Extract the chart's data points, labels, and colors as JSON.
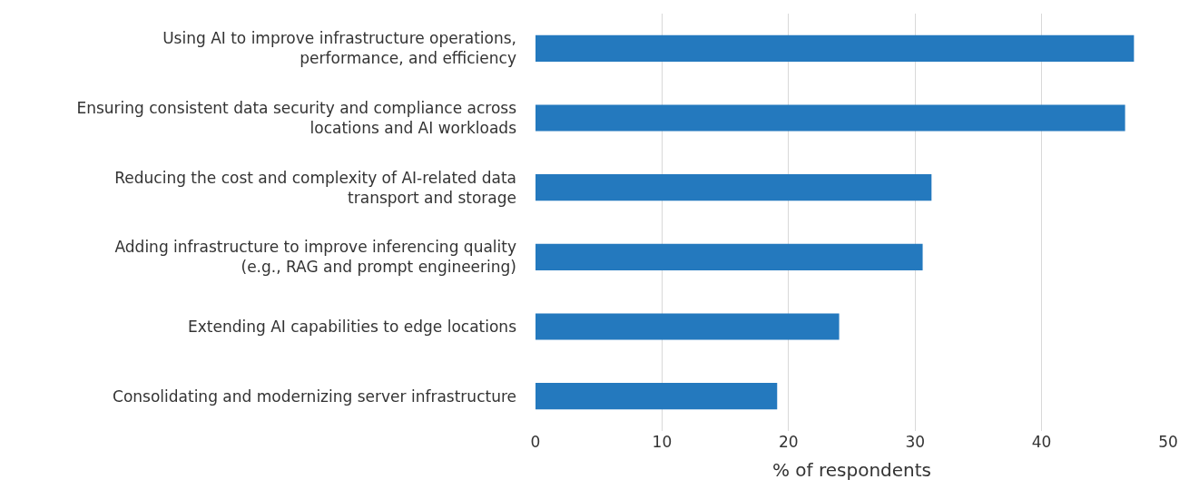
{
  "chart_data": {
    "type": "bar",
    "orientation": "horizontal",
    "categories": [
      "Using AI to improve infrastructure operations, performance, and efficiency",
      "Ensuring consistent data security and compliance across locations and AI workloads",
      "Reducing the cost and complexity of AI-related data transport and storage",
      "Adding infrastructure to improve inferencing quality (e.g., RAG and prompt engineering)",
      "Extending AI capabilities to edge locations",
      "Consolidating and modernizing server infrastructure"
    ],
    "values": [
      47.3,
      46.6,
      31.3,
      30.6,
      24.0,
      19.1
    ],
    "color": "#2479be",
    "xlabel": "% of respondents",
    "xlim": [
      0,
      50
    ],
    "xticks": [
      0,
      10,
      20,
      30,
      40,
      50
    ],
    "grid": "x",
    "legend": false
  }
}
